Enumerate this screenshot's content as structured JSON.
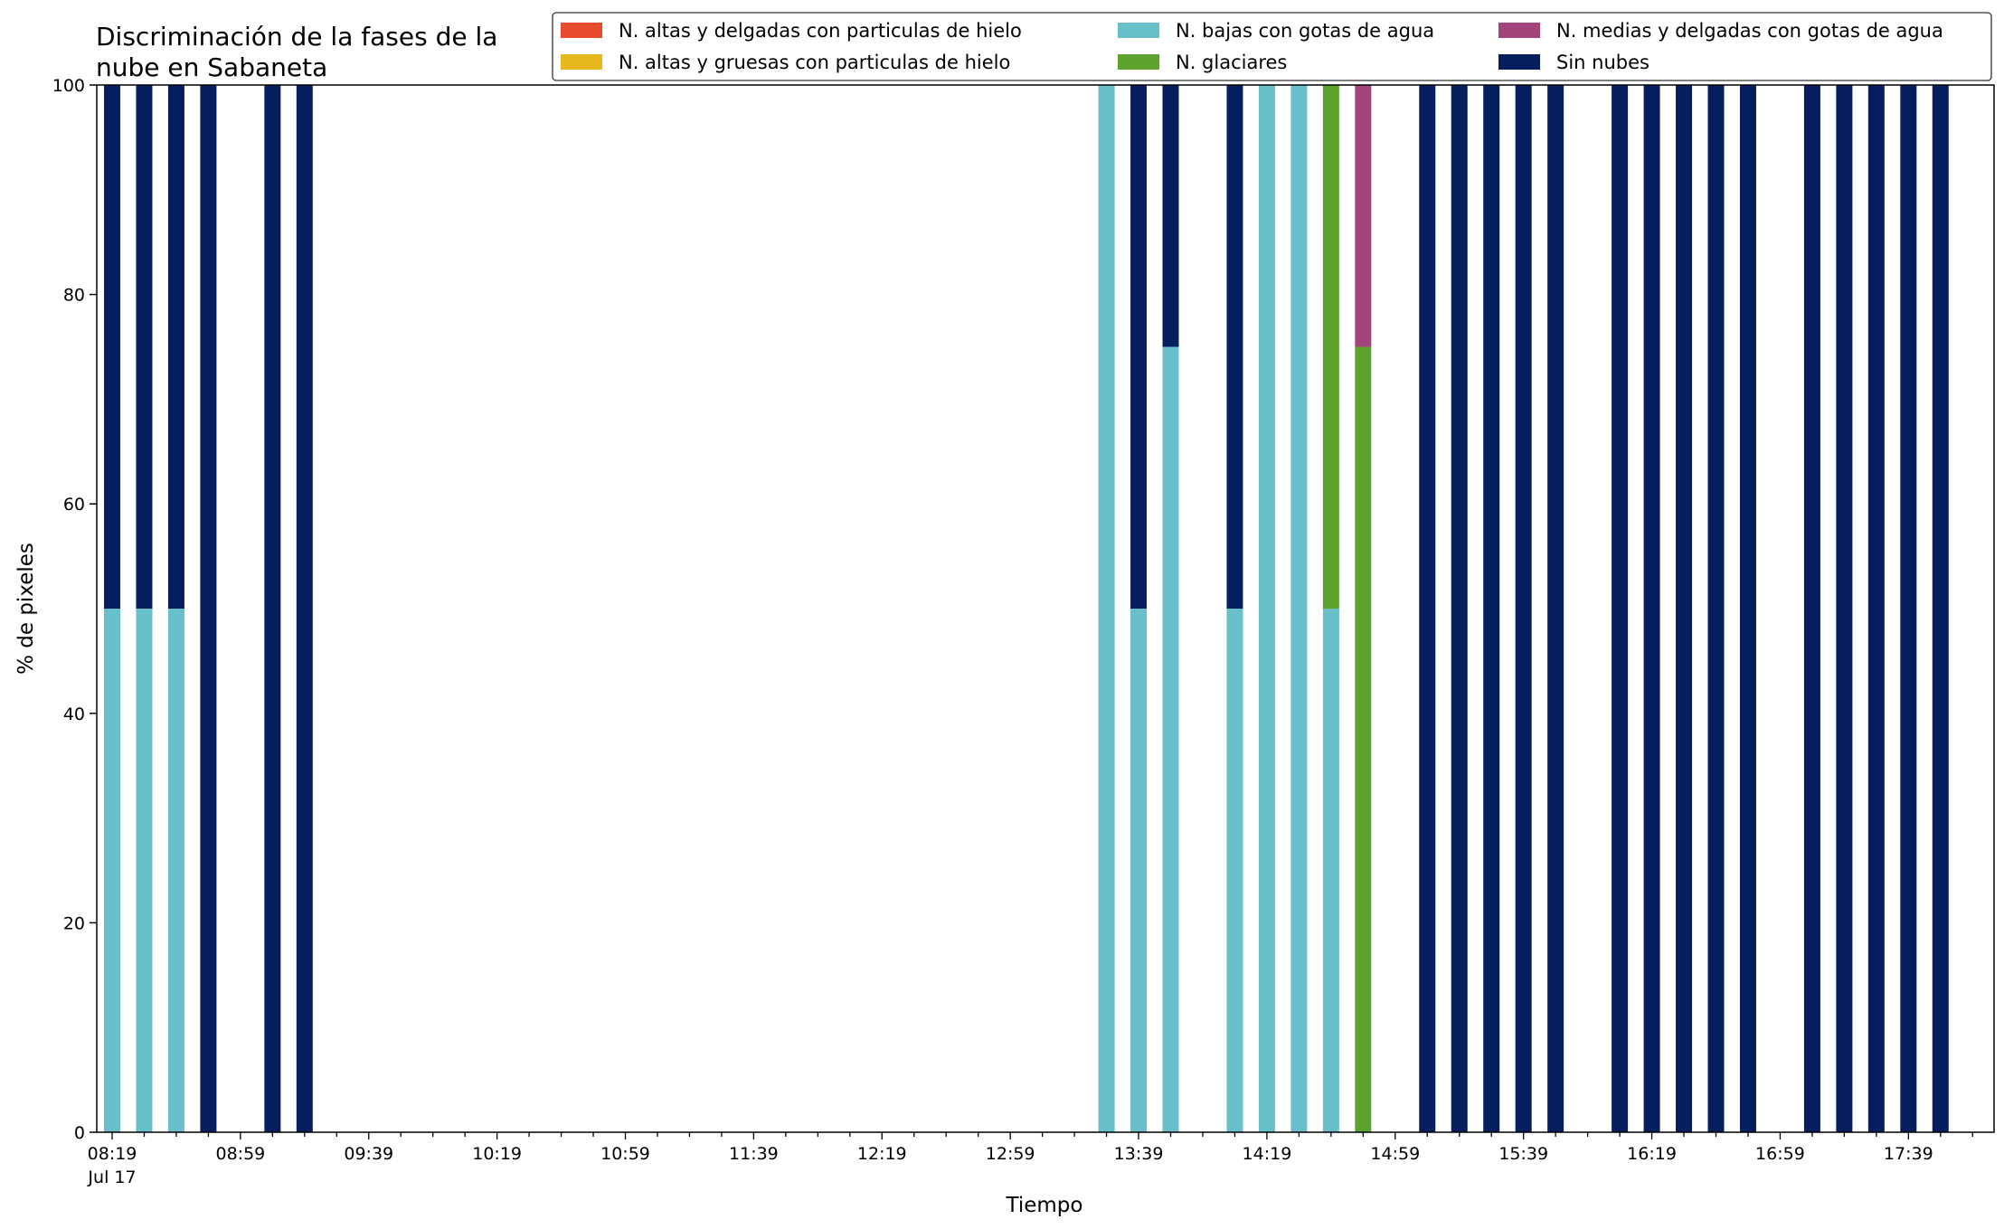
{
  "chart_data": {
    "type": "bar",
    "stacked": true,
    "title": "Discriminación de la fases de la\nnube en Sabaneta",
    "xlabel": "Tiempo",
    "ylabel": "% de pixeles",
    "ylim": [
      0,
      100
    ],
    "yticks": [
      0,
      20,
      40,
      60,
      80,
      100
    ],
    "xticks": [
      {
        "time": "08:19",
        "sub": "Jul 17"
      },
      {
        "time": "08:59",
        "sub": ""
      },
      {
        "time": "09:39",
        "sub": ""
      },
      {
        "time": "10:19",
        "sub": ""
      },
      {
        "time": "10:59",
        "sub": ""
      },
      {
        "time": "11:39",
        "sub": ""
      },
      {
        "time": "12:19",
        "sub": ""
      },
      {
        "time": "12:59",
        "sub": ""
      },
      {
        "time": "13:39",
        "sub": ""
      },
      {
        "time": "14:19",
        "sub": ""
      },
      {
        "time": "14:59",
        "sub": ""
      },
      {
        "time": "15:39",
        "sub": ""
      },
      {
        "time": "16:19",
        "sub": ""
      },
      {
        "time": "16:59",
        "sub": ""
      },
      {
        "time": "17:39",
        "sub": ""
      }
    ],
    "grid": false,
    "legend_position": "top-right",
    "legend": [
      {
        "name": "N. altas y delgadas con particulas de hielo",
        "color": "#e84a2e"
      },
      {
        "name": "N. altas y gruesas con particulas de hielo",
        "color": "#e6b81e"
      },
      {
        "name": "N. bajas con gotas de agua",
        "color": "#67bfca"
      },
      {
        "name": "N. glaciares",
        "color": "#5ea22e"
      },
      {
        "name": "N. medias y delgadas con gotas de agua",
        "color": "#a3457a"
      },
      {
        "name": "Sin nubes",
        "color": "#041e5e"
      }
    ],
    "x": [
      "08:19",
      "08:29",
      "08:39",
      "08:49",
      "08:59",
      "09:09",
      "09:19",
      "09:29",
      "09:39",
      "09:49",
      "09:59",
      "10:09",
      "10:19",
      "10:29",
      "10:39",
      "10:49",
      "10:59",
      "11:09",
      "11:19",
      "11:29",
      "11:39",
      "11:49",
      "11:59",
      "12:09",
      "12:19",
      "12:29",
      "12:39",
      "12:49",
      "12:59",
      "13:09",
      "13:19",
      "13:29",
      "13:39",
      "13:49",
      "13:59",
      "14:09",
      "14:19",
      "14:29",
      "14:39",
      "14:49",
      "14:59",
      "15:09",
      "15:19",
      "15:29",
      "15:39",
      "15:49",
      "15:59",
      "16:09",
      "16:19",
      "16:29",
      "16:39",
      "16:49",
      "16:59",
      "17:09",
      "17:19",
      "17:29",
      "17:39",
      "17:49"
    ],
    "series": [
      {
        "name": "N. altas y delgadas con particulas de hielo",
        "color": "#e84a2e",
        "values": [
          0,
          0,
          0,
          0,
          0,
          0,
          0,
          0,
          0,
          0,
          0,
          0,
          0,
          0,
          0,
          0,
          0,
          0,
          0,
          0,
          0,
          0,
          0,
          0,
          0,
          0,
          0,
          0,
          0,
          0,
          0,
          0,
          0,
          0,
          0,
          0,
          0,
          0,
          0,
          0,
          0,
          0,
          0,
          0,
          0,
          0,
          0,
          0,
          0,
          0,
          0,
          0,
          0,
          0,
          0,
          0,
          0,
          0
        ]
      },
      {
        "name": "N. altas y gruesas con particulas de hielo",
        "color": "#e6b81e",
        "values": [
          0,
          0,
          0,
          0,
          0,
          0,
          0,
          0,
          0,
          0,
          0,
          0,
          0,
          0,
          0,
          0,
          0,
          0,
          0,
          0,
          0,
          0,
          0,
          0,
          0,
          0,
          0,
          0,
          0,
          0,
          0,
          0,
          0,
          0,
          0,
          0,
          0,
          0,
          0,
          0,
          0,
          0,
          0,
          0,
          0,
          0,
          0,
          0,
          0,
          0,
          0,
          0,
          0,
          0,
          0,
          0,
          0,
          0
        ]
      },
      {
        "name": "N. bajas con gotas de agua",
        "color": "#67bfca",
        "values": [
          50,
          50,
          50,
          0,
          0,
          0,
          0,
          0,
          0,
          0,
          0,
          0,
          0,
          0,
          0,
          0,
          0,
          0,
          0,
          0,
          0,
          0,
          0,
          0,
          0,
          0,
          0,
          0,
          0,
          0,
          0,
          100,
          50,
          75,
          0,
          50,
          100,
          100,
          50,
          0,
          0,
          0,
          0,
          0,
          0,
          0,
          0,
          0,
          0,
          0,
          0,
          0,
          0,
          0,
          0,
          0,
          0,
          0
        ]
      },
      {
        "name": "N. glaciares",
        "color": "#5ea22e",
        "values": [
          0,
          0,
          0,
          0,
          0,
          0,
          0,
          0,
          0,
          0,
          0,
          0,
          0,
          0,
          0,
          0,
          0,
          0,
          0,
          0,
          0,
          0,
          0,
          0,
          0,
          0,
          0,
          0,
          0,
          0,
          0,
          0,
          0,
          0,
          0,
          0,
          0,
          0,
          50,
          75,
          0,
          0,
          0,
          0,
          0,
          0,
          0,
          0,
          0,
          0,
          0,
          0,
          0,
          0,
          0,
          0,
          0,
          0
        ]
      },
      {
        "name": "N. medias y delgadas con gotas de agua",
        "color": "#a3457a",
        "values": [
          0,
          0,
          0,
          0,
          0,
          0,
          0,
          0,
          0,
          0,
          0,
          0,
          0,
          0,
          0,
          0,
          0,
          0,
          0,
          0,
          0,
          0,
          0,
          0,
          0,
          0,
          0,
          0,
          0,
          0,
          0,
          0,
          0,
          0,
          0,
          0,
          0,
          0,
          0,
          25,
          0,
          0,
          0,
          0,
          0,
          0,
          0,
          0,
          0,
          0,
          0,
          0,
          0,
          0,
          0,
          0,
          0,
          0
        ]
      },
      {
        "name": "Sin nubes",
        "color": "#041e5e",
        "values": [
          50,
          50,
          50,
          100,
          0,
          100,
          100,
          0,
          0,
          0,
          0,
          0,
          0,
          0,
          0,
          0,
          0,
          0,
          0,
          0,
          0,
          0,
          0,
          0,
          0,
          0,
          0,
          0,
          0,
          0,
          0,
          0,
          50,
          25,
          0,
          50,
          0,
          0,
          0,
          0,
          0,
          100,
          100,
          100,
          100,
          100,
          0,
          100,
          100,
          100,
          100,
          100,
          0,
          100,
          100,
          100,
          100,
          100
        ]
      }
    ]
  }
}
